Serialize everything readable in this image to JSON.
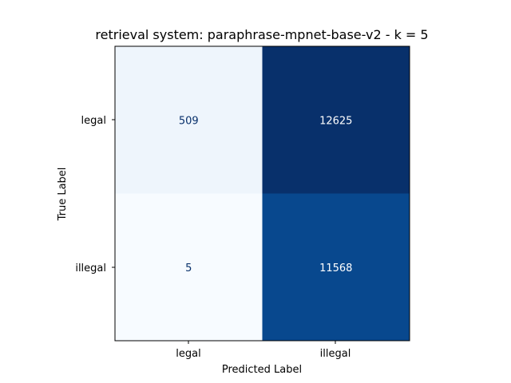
{
  "chart_data": {
    "type": "heatmap",
    "title": "retrieval system: paraphrase-mpnet-base-v2 - k = 5",
    "xlabel": "Predicted Label",
    "ylabel": "True Label",
    "x_categories": [
      "legal",
      "illegal"
    ],
    "y_categories": [
      "legal",
      "illegal"
    ],
    "values": [
      [
        509,
        12625
      ],
      [
        5,
        11568
      ]
    ],
    "colormap": "Blues",
    "colors": {
      "cell_0_0": "#eef5fc",
      "cell_0_1": "#08306b",
      "cell_1_0": "#f7fbff",
      "cell_1_1": "#08488e",
      "text_light": "#ffffff",
      "text_dark": "#08306b"
    },
    "grid": false,
    "colorbar": false
  }
}
